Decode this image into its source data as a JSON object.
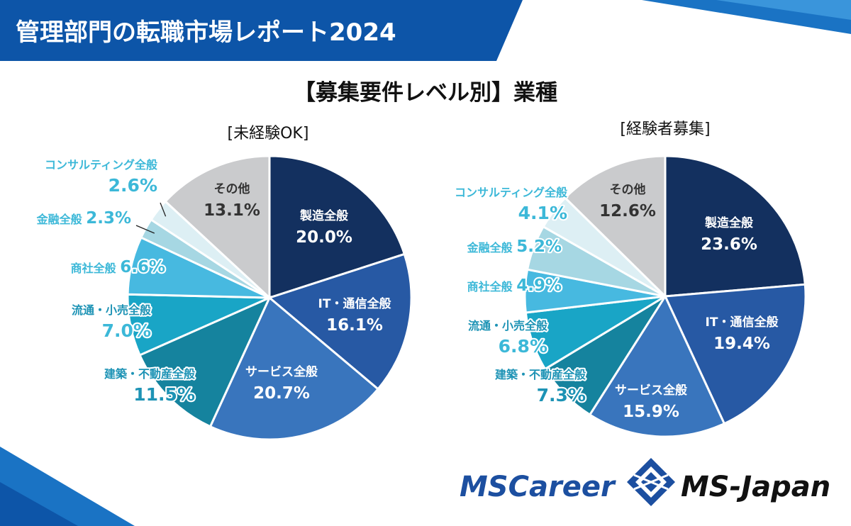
{
  "header": {
    "title": "管理部門の転職市場レポート2024"
  },
  "chart_title": "【募集要件レベル別】業種",
  "colors": {
    "navy": "#13305f",
    "royal": "#2759a4",
    "blue": "#3975bd",
    "teal_dark": "#15839e",
    "teal": "#19a5c6",
    "sky": "#47b9e0",
    "light": "#a6d7e3",
    "paler": "#ddeff4",
    "gray": "#cacbcd",
    "label_cyan": "#3cb8d8",
    "label_teal": "#1d93b5"
  },
  "chart_data": [
    {
      "type": "pie",
      "title": "[未経験OK]",
      "slices": [
        {
          "name": "製造全般",
          "value": 20.0,
          "label": "20.0%"
        },
        {
          "name": "IT・通信全般",
          "value": 16.1,
          "label": "16.1%"
        },
        {
          "name": "サービス全般",
          "value": 20.7,
          "label": "20.7%"
        },
        {
          "name": "建築・不動産全般",
          "value": 11.5,
          "label": "11.5%"
        },
        {
          "name": "流通・小売全般",
          "value": 7.0,
          "label": "7.0%"
        },
        {
          "name": "商社全般",
          "value": 6.6,
          "label": "6.6%"
        },
        {
          "name": "金融全般",
          "value": 2.3,
          "label": "2.3%"
        },
        {
          "name": "コンサルティング全般",
          "value": 2.6,
          "label": "2.6%"
        },
        {
          "name": "その他",
          "value": 13.1,
          "label": "13.1%"
        }
      ]
    },
    {
      "type": "pie",
      "title": "[経験者募集]",
      "slices": [
        {
          "name": "製造全般",
          "value": 23.6,
          "label": "23.6%"
        },
        {
          "name": "IT・通信全般",
          "value": 19.4,
          "label": "19.4%"
        },
        {
          "name": "サービス全般",
          "value": 15.9,
          "label": "15.9%"
        },
        {
          "name": "建築・不動産全般",
          "value": 7.3,
          "label": "7.3%"
        },
        {
          "name": "流通・小売全般",
          "value": 6.8,
          "label": "6.8%"
        },
        {
          "name": "商社全般",
          "value": 4.9,
          "label": "4.9%"
        },
        {
          "name": "金融全般",
          "value": 5.2,
          "label": "5.2%"
        },
        {
          "name": "コンサルティング全般",
          "value": 4.1,
          "label": "4.1%"
        },
        {
          "name": "その他",
          "value": 12.6,
          "label": "12.6%"
        }
      ]
    }
  ],
  "logos": {
    "left": "MSCareer",
    "right": "MS-Japan"
  }
}
